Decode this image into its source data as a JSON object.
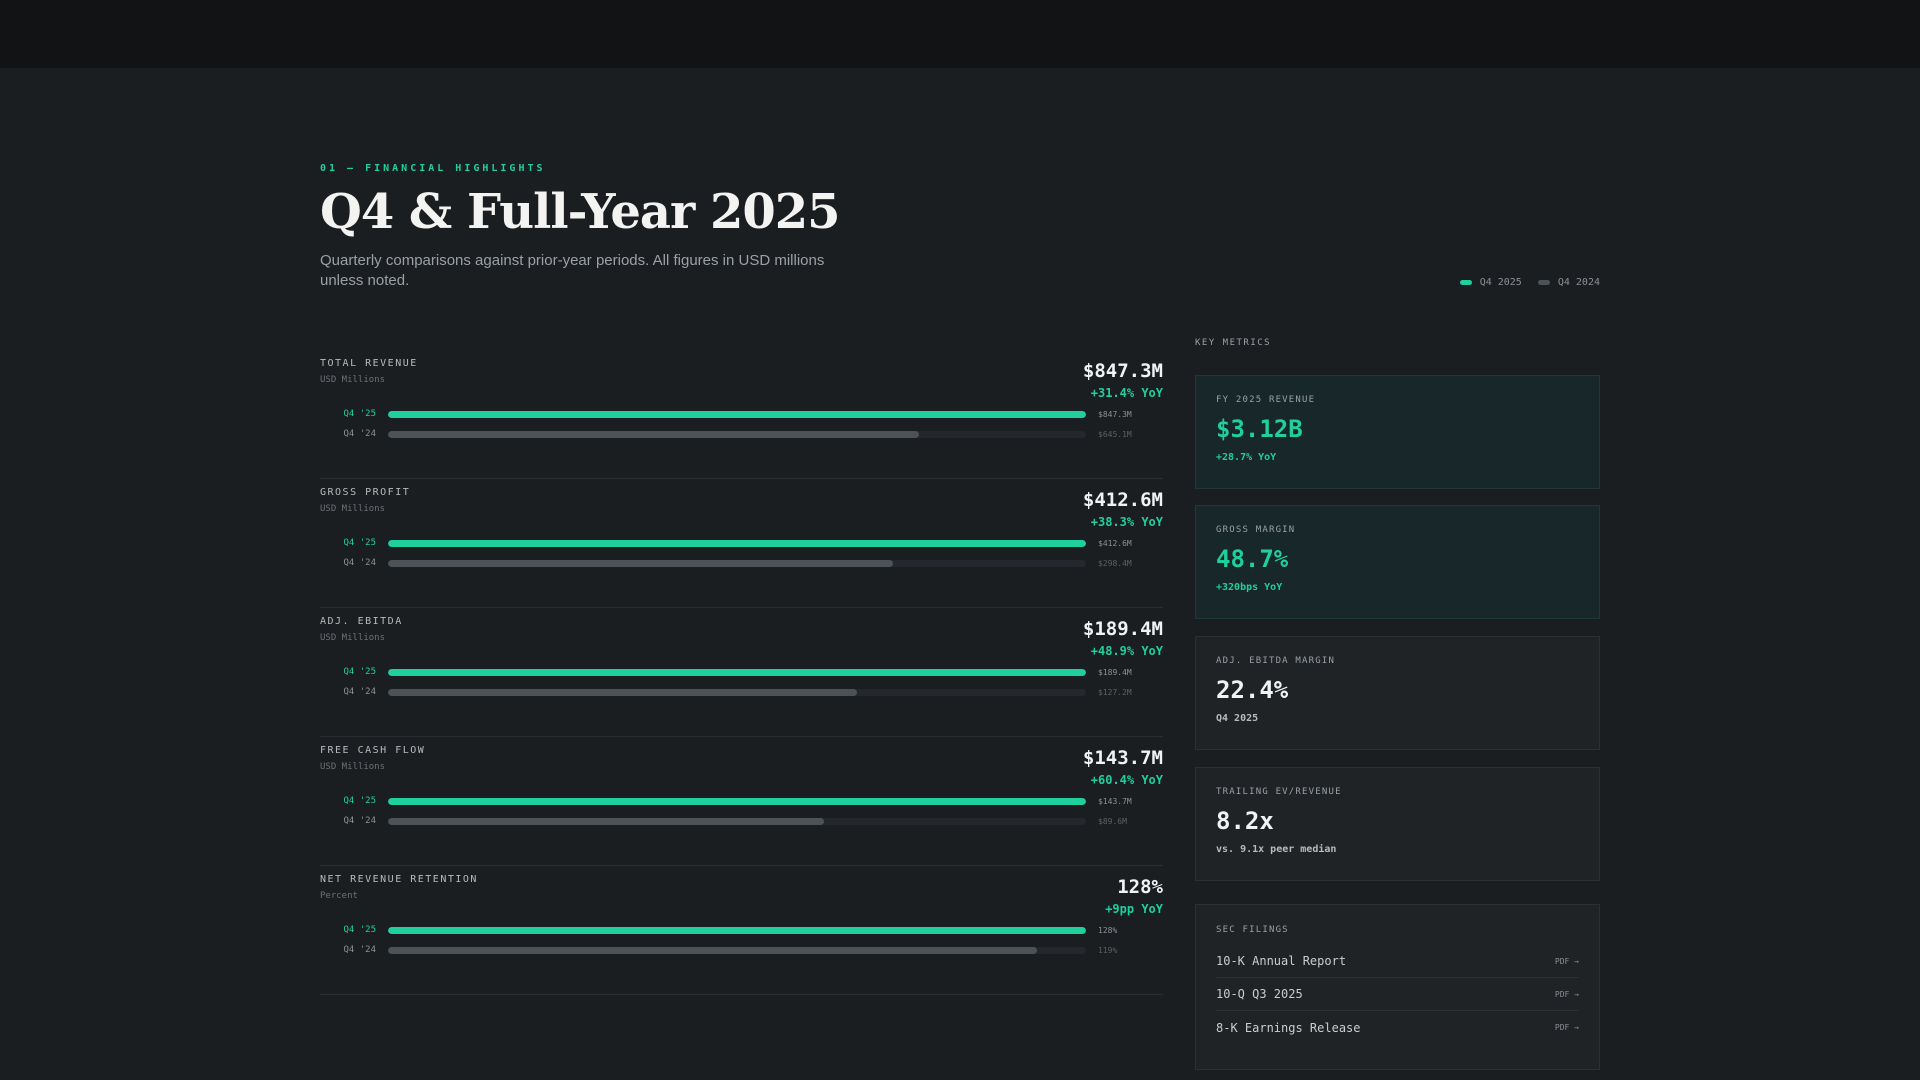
{
  "header": {
    "eyebrow": "01 — FINANCIAL HIGHLIGHTS",
    "title": "Q4 & Full-Year 2025",
    "subtitle": "Quarterly comparisons against prior-year periods. All figures in USD millions unless noted."
  },
  "legend": {
    "current": "Q4 2025",
    "previous": "Q4 2024",
    "current_color": "#1fcf9d",
    "previous_color": "#4d5257"
  },
  "metrics": [
    {
      "name": "TOTAL REVENUE",
      "unit": "USD Millions",
      "value": "$847.3M",
      "change": "+31.4% YoY",
      "cur_label": "Q4 '25",
      "prev_label": "Q4 '24",
      "cur_val": "$847.3M",
      "prev_val": "$645.1M",
      "cur_fraction": 1.0,
      "prev_fraction": 0.761
    },
    {
      "name": "GROSS PROFIT",
      "unit": "USD Millions",
      "value": "$412.6M",
      "change": "+38.3% YoY",
      "cur_label": "Q4 '25",
      "prev_label": "Q4 '24",
      "cur_val": "$412.6M",
      "prev_val": "$298.4M",
      "cur_fraction": 1.0,
      "prev_fraction": 0.723
    },
    {
      "name": "ADJ. EBITDA",
      "unit": "USD Millions",
      "value": "$189.4M",
      "change": "+48.9% YoY",
      "cur_label": "Q4 '25",
      "prev_label": "Q4 '24",
      "cur_val": "$189.4M",
      "prev_val": "$127.2M",
      "cur_fraction": 1.0,
      "prev_fraction": 0.672
    },
    {
      "name": "FREE CASH FLOW",
      "unit": "USD Millions",
      "value": "$143.7M",
      "change": "+60.4% YoY",
      "cur_label": "Q4 '25",
      "prev_label": "Q4 '24",
      "cur_val": "$143.7M",
      "prev_val": "$89.6M",
      "cur_fraction": 1.0,
      "prev_fraction": 0.624
    },
    {
      "name": "NET REVENUE RETENTION",
      "unit": "Percent",
      "value": "128%",
      "change": "+9pp YoY",
      "cur_label": "Q4 '25",
      "prev_label": "Q4 '24",
      "cur_val": "128%",
      "prev_val": "119%",
      "cur_fraction": 1.0,
      "prev_fraction": 0.93
    }
  ],
  "key_metrics": {
    "title": "KEY METRICS",
    "cards": [
      {
        "label": "FY 2025 REVENUE",
        "value": "$3.12B",
        "sub": "+28.7% YoY",
        "highlight": true
      },
      {
        "label": "GROSS MARGIN",
        "value": "48.7%",
        "sub": "+320bps YoY",
        "highlight": true
      },
      {
        "label": "ADJ. EBITDA MARGIN",
        "value": "22.4%",
        "sub": "Q4 2025",
        "highlight": false
      },
      {
        "label": "TRAILING EV/REVENUE",
        "value": "8.2x",
        "sub": "vs. 9.1x peer median",
        "highlight": false
      }
    ]
  },
  "filings": {
    "title": "SEC FILINGS",
    "items": [
      {
        "name": "10-K Annual Report",
        "link": "PDF →"
      },
      {
        "name": "10-Q Q3 2025",
        "link": "PDF →"
      },
      {
        "name": "8-K Earnings Release",
        "link": "PDF →"
      }
    ]
  }
}
